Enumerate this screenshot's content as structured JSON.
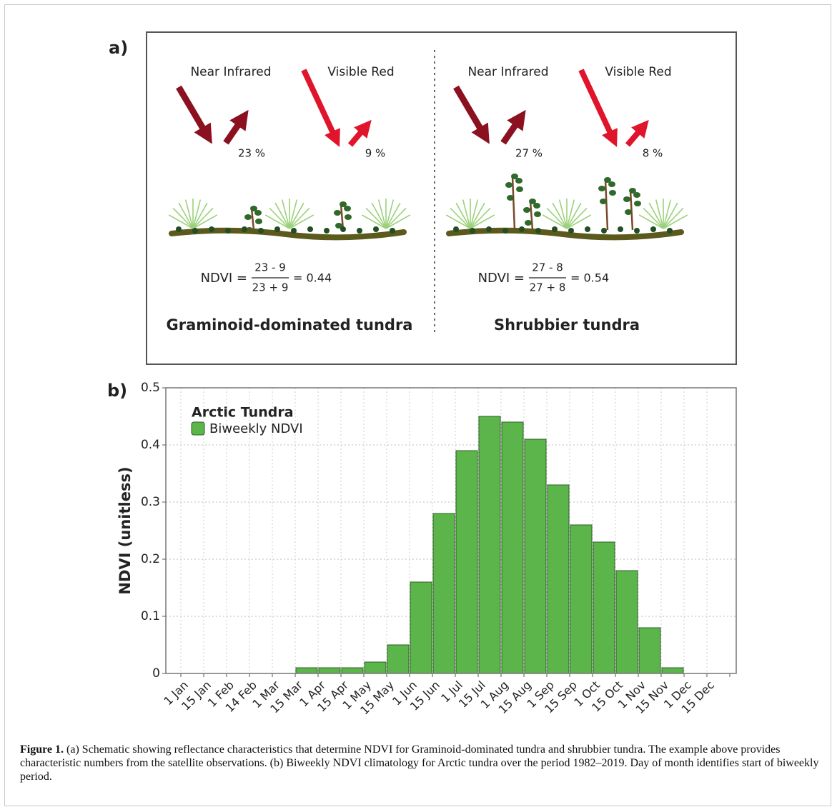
{
  "panel_a": {
    "label": "a)",
    "columns": [
      {
        "nir_label": "Near Infrared",
        "red_label": "Visible Red",
        "nir_value": "23 %",
        "red_value": "9 %",
        "ndvi_label": "NDVI =",
        "numerator": "23 - 9",
        "denominator": "23 + 9",
        "result": "= 0.44",
        "title": "Graminoid-dominated tundra"
      },
      {
        "nir_label": "Near Infrared",
        "red_label": "Visible Red",
        "nir_value": "27 %",
        "red_value": "8 %",
        "ndvi_label": "NDVI =",
        "numerator": "27 - 8",
        "denominator": "27 + 8",
        "result": "= 0.54",
        "title": "Shrubbier tundra"
      }
    ]
  },
  "chart_data": {
    "type": "bar",
    "panel_label": "b)",
    "y_label": "NDVI (unitless)",
    "legend_title": "Arctic Tundra",
    "categories": [
      "1 Jan",
      "15 Jan",
      "1 Feb",
      "14 Feb",
      "1 Mar",
      "15 Mar",
      "1 Apr",
      "15 Apr",
      "1 May",
      "15 May",
      "1 Jun",
      "15 Jun",
      "1 Jul",
      "15 Jul",
      "1 Aug",
      "15 Aug",
      "1 Sep",
      "15 Sep",
      "1 Oct",
      "15 Oct",
      "1 Nov",
      "15 Nov",
      "1 Dec",
      "15 Dec"
    ],
    "series": [
      {
        "name": "Biweekly NDVI",
        "color": "#5cb54a",
        "values": [
          0,
          0,
          0,
          0,
          0,
          0.01,
          0.01,
          0.01,
          0.02,
          0.05,
          0.16,
          0.28,
          0.39,
          0.45,
          0.44,
          0.41,
          0.33,
          0.26,
          0.23,
          0.18,
          0.08,
          0.01,
          0,
          0
        ]
      }
    ],
    "ylim": [
      0,
      0.5
    ],
    "yticks": [
      0,
      0.1,
      0.2,
      0.3,
      0.4,
      0.5
    ],
    "grid": true
  },
  "caption": {
    "label": "Figure 1.",
    "text": "(a) Schematic showing reflectance characteristics that determine NDVI for Graminoid-dominated tundra and shrubbier tundra. The example above provides characteristic numbers from the satellite observations. (b) Biweekly NDVI climatology for Arctic tundra over the period 1982–2019. Day of month identifies start of biweekly period."
  }
}
